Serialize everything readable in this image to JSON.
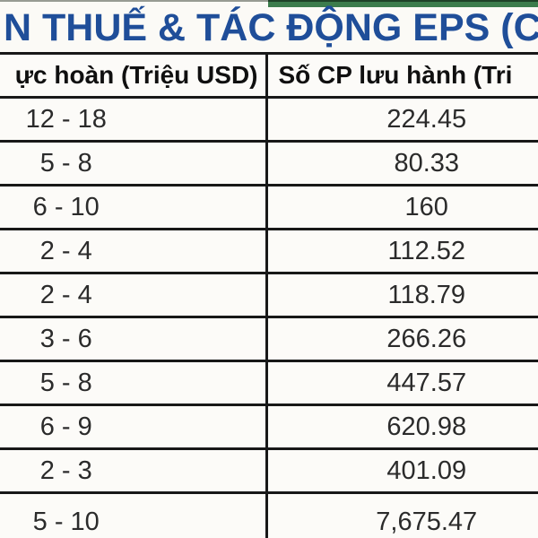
{
  "title": "N THUẾ & TÁC ĐỘNG EPS (C",
  "table": {
    "columns": [
      {
        "header": "ực hoàn (Triệu USD)"
      },
      {
        "header": "Số CP lưu hành (Tri"
      }
    ],
    "rows": [
      [
        "12 - 18",
        "224.45"
      ],
      [
        "5 - 8",
        "80.33"
      ],
      [
        "6 - 10",
        "160"
      ],
      [
        "2 - 4",
        "112.52"
      ],
      [
        "2 - 4",
        "118.79"
      ],
      [
        "3 - 6",
        "266.26"
      ],
      [
        "5 - 8",
        "447.57"
      ],
      [
        "6 - 9",
        "620.98"
      ],
      [
        "2 - 3",
        "401.09"
      ],
      [
        "5 - 10",
        "7,675.47"
      ]
    ]
  },
  "colors": {
    "accent_title_blue": "#1f4e99",
    "green_bar": "#3c7c4c",
    "grid_line": "#181818",
    "background": "#fbfaf6",
    "cell_background": "#fcfbf8"
  }
}
